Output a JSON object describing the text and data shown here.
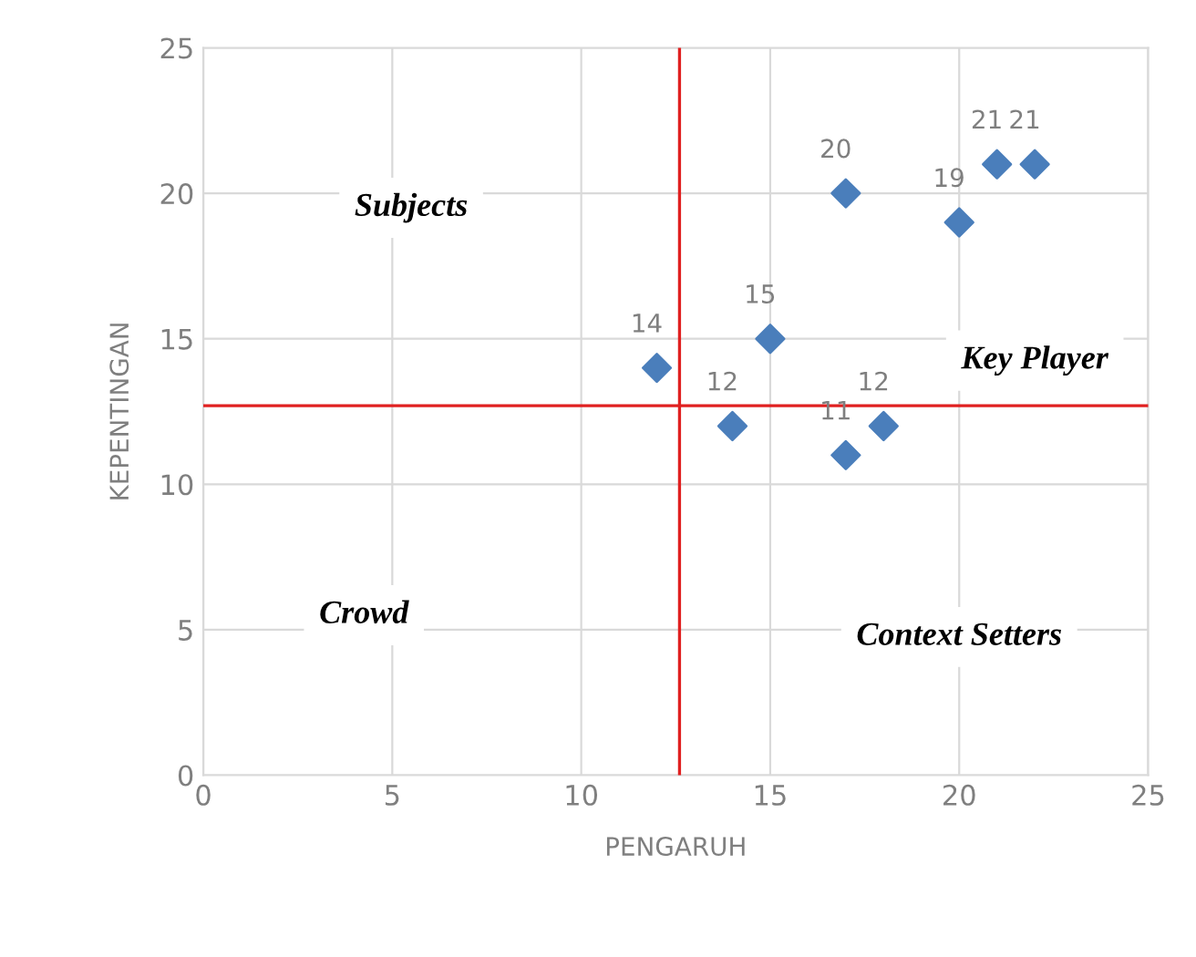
{
  "chart_data": {
    "type": "scatter",
    "xlabel": "PENGARUH",
    "ylabel": "KEPENTINGAN",
    "x": [
      12,
      14,
      15,
      17,
      17,
      18,
      20,
      21,
      22
    ],
    "series": [
      {
        "color": "#4a7ebb",
        "values": [
          14,
          12,
          15,
          20,
          11,
          12,
          19,
          21,
          21
        ]
      }
    ],
    "data_labels": true,
    "marker": "diamond",
    "grid": true,
    "xlim": [
      0,
      25
    ],
    "ylim": [
      0,
      25
    ],
    "xticks": [
      0,
      5,
      10,
      15,
      20,
      25
    ],
    "yticks": [
      0,
      5,
      10,
      15,
      20,
      25
    ],
    "ref_lines": [
      {
        "axis": "x",
        "value": 12.6,
        "color": "#e02020"
      },
      {
        "axis": "y",
        "value": 12.7,
        "color": "#e02020"
      }
    ],
    "annotations": [
      "Subjects",
      "Key Player",
      "Crowd",
      "Context Setters"
    ]
  }
}
